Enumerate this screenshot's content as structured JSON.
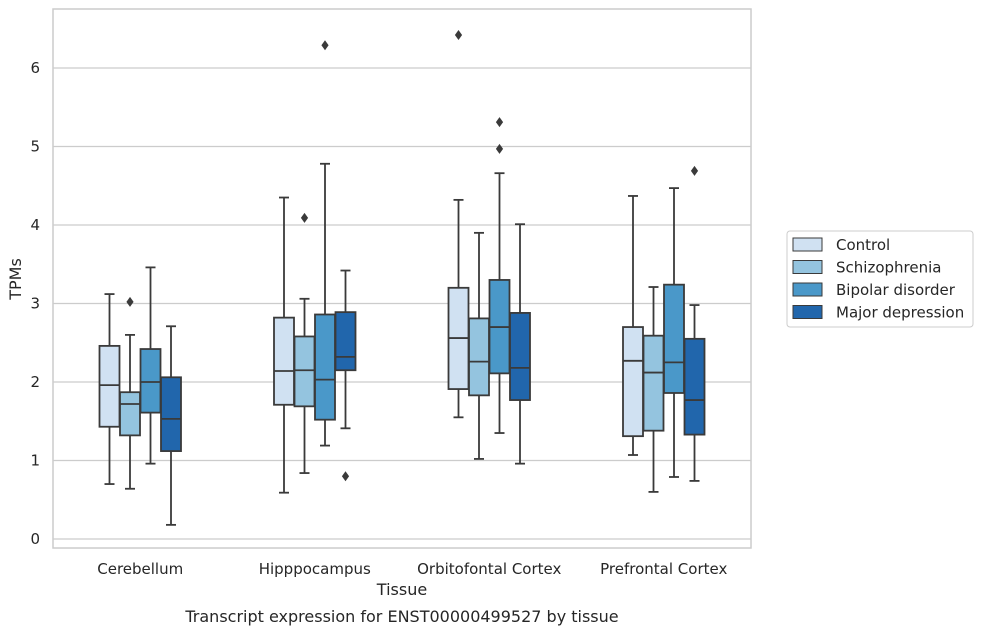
{
  "chart_data": {
    "type": "box",
    "xlabel": "Tissue",
    "ylabel": "TPMs",
    "caption": "Transcript expression for ENST00000499527 by tissue",
    "ylim": [
      -0.1,
      6.75
    ],
    "yticks": [
      0,
      1,
      2,
      3,
      4,
      5,
      6
    ],
    "grid": "horizontal",
    "legend_position": "right",
    "categories": [
      "Cerebellum",
      "Hipppocampus",
      "Orbitofontal Cortex",
      "Prefrontal Cortex"
    ],
    "series": [
      {
        "name": "Control",
        "color": "#d0e1f2",
        "boxes": [
          {
            "whisker_low": 0.7,
            "q1": 1.43,
            "median": 1.96,
            "q3": 2.46,
            "whisker_high": 3.12,
            "outliers": []
          },
          {
            "whisker_low": 0.59,
            "q1": 1.71,
            "median": 2.14,
            "q3": 2.82,
            "whisker_high": 4.35,
            "outliers": []
          },
          {
            "whisker_low": 1.55,
            "q1": 1.91,
            "median": 2.56,
            "q3": 3.2,
            "whisker_high": 4.32,
            "outliers": [
              6.42
            ]
          },
          {
            "whisker_low": 1.07,
            "q1": 1.31,
            "median": 2.27,
            "q3": 2.7,
            "whisker_high": 4.37,
            "outliers": []
          }
        ]
      },
      {
        "name": "Schizophrenia",
        "color": "#94c4df",
        "boxes": [
          {
            "whisker_low": 0.64,
            "q1": 1.32,
            "median": 1.72,
            "q3": 1.87,
            "whisker_high": 2.6,
            "outliers": [
              3.02
            ]
          },
          {
            "whisker_low": 0.84,
            "q1": 1.69,
            "median": 2.15,
            "q3": 2.58,
            "whisker_high": 3.06,
            "outliers": [
              4.09
            ]
          },
          {
            "whisker_low": 1.02,
            "q1": 1.83,
            "median": 2.26,
            "q3": 2.81,
            "whisker_high": 3.9,
            "outliers": []
          },
          {
            "whisker_low": 0.6,
            "q1": 1.38,
            "median": 2.12,
            "q3": 2.59,
            "whisker_high": 3.21,
            "outliers": []
          }
        ]
      },
      {
        "name": "Bipolar disorder",
        "color": "#4a98c9",
        "boxes": [
          {
            "whisker_low": 0.96,
            "q1": 1.61,
            "median": 2.0,
            "q3": 2.42,
            "whisker_high": 3.46,
            "outliers": []
          },
          {
            "whisker_low": 1.19,
            "q1": 1.52,
            "median": 2.03,
            "q3": 2.86,
            "whisker_high": 4.78,
            "outliers": [
              6.29
            ]
          },
          {
            "whisker_low": 1.35,
            "q1": 2.11,
            "median": 2.7,
            "q3": 3.3,
            "whisker_high": 4.66,
            "outliers": [
              4.97,
              5.31
            ]
          },
          {
            "whisker_low": 0.79,
            "q1": 1.86,
            "median": 2.25,
            "q3": 3.24,
            "whisker_high": 4.47,
            "outliers": []
          }
        ]
      },
      {
        "name": "Major depression",
        "color": "#2166ac",
        "boxes": [
          {
            "whisker_low": 0.18,
            "q1": 1.12,
            "median": 1.53,
            "q3": 2.06,
            "whisker_high": 2.71,
            "outliers": []
          },
          {
            "whisker_low": 1.41,
            "q1": 2.15,
            "median": 2.32,
            "q3": 2.89,
            "whisker_high": 3.42,
            "outliers": [
              0.8
            ]
          },
          {
            "whisker_low": 0.96,
            "q1": 1.77,
            "median": 2.18,
            "q3": 2.88,
            "whisker_high": 4.01,
            "outliers": []
          },
          {
            "whisker_low": 0.74,
            "q1": 1.33,
            "median": 1.77,
            "q3": 2.55,
            "whisker_high": 2.98,
            "outliers": [
              4.69
            ]
          }
        ]
      }
    ]
  }
}
